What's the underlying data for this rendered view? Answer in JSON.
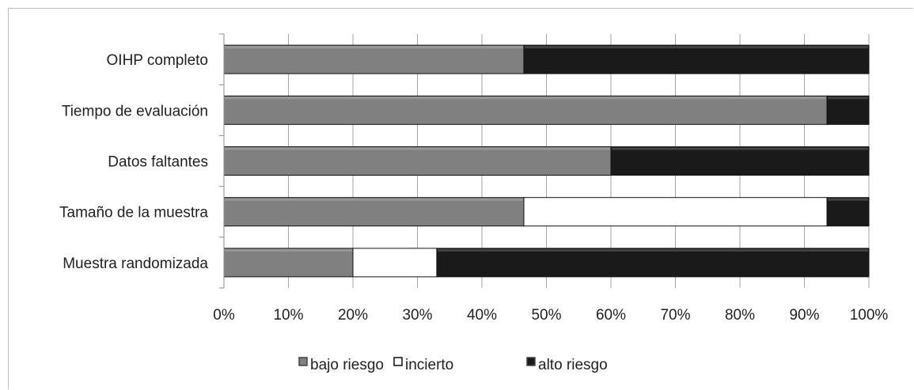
{
  "chart_data": {
    "type": "bar",
    "orientation": "horizontal",
    "stacked": true,
    "percent": true,
    "categories": [
      "OIHP completo",
      "Tiempo de evaluación",
      "Datos faltantes",
      "Tamaño de la muestra",
      "Muestra randomizada"
    ],
    "series": [
      {
        "name": "bajo riesgo",
        "color": "#808080",
        "values": [
          46.5,
          93.5,
          60,
          46.5,
          20
        ]
      },
      {
        "name": "incierto",
        "color": "#ffffff",
        "values": [
          0,
          0,
          0,
          47,
          13
        ]
      },
      {
        "name": "alto riesgo",
        "color": "#1a1a1a",
        "values": [
          53.5,
          6.5,
          40,
          6.5,
          67
        ]
      }
    ],
    "xticks": [
      "0%",
      "10%",
      "20%",
      "30%",
      "40%",
      "50%",
      "60%",
      "70%",
      "80%",
      "90%",
      "100%"
    ],
    "xlim": [
      0,
      100
    ],
    "grid": true,
    "legend_position": "bottom"
  }
}
